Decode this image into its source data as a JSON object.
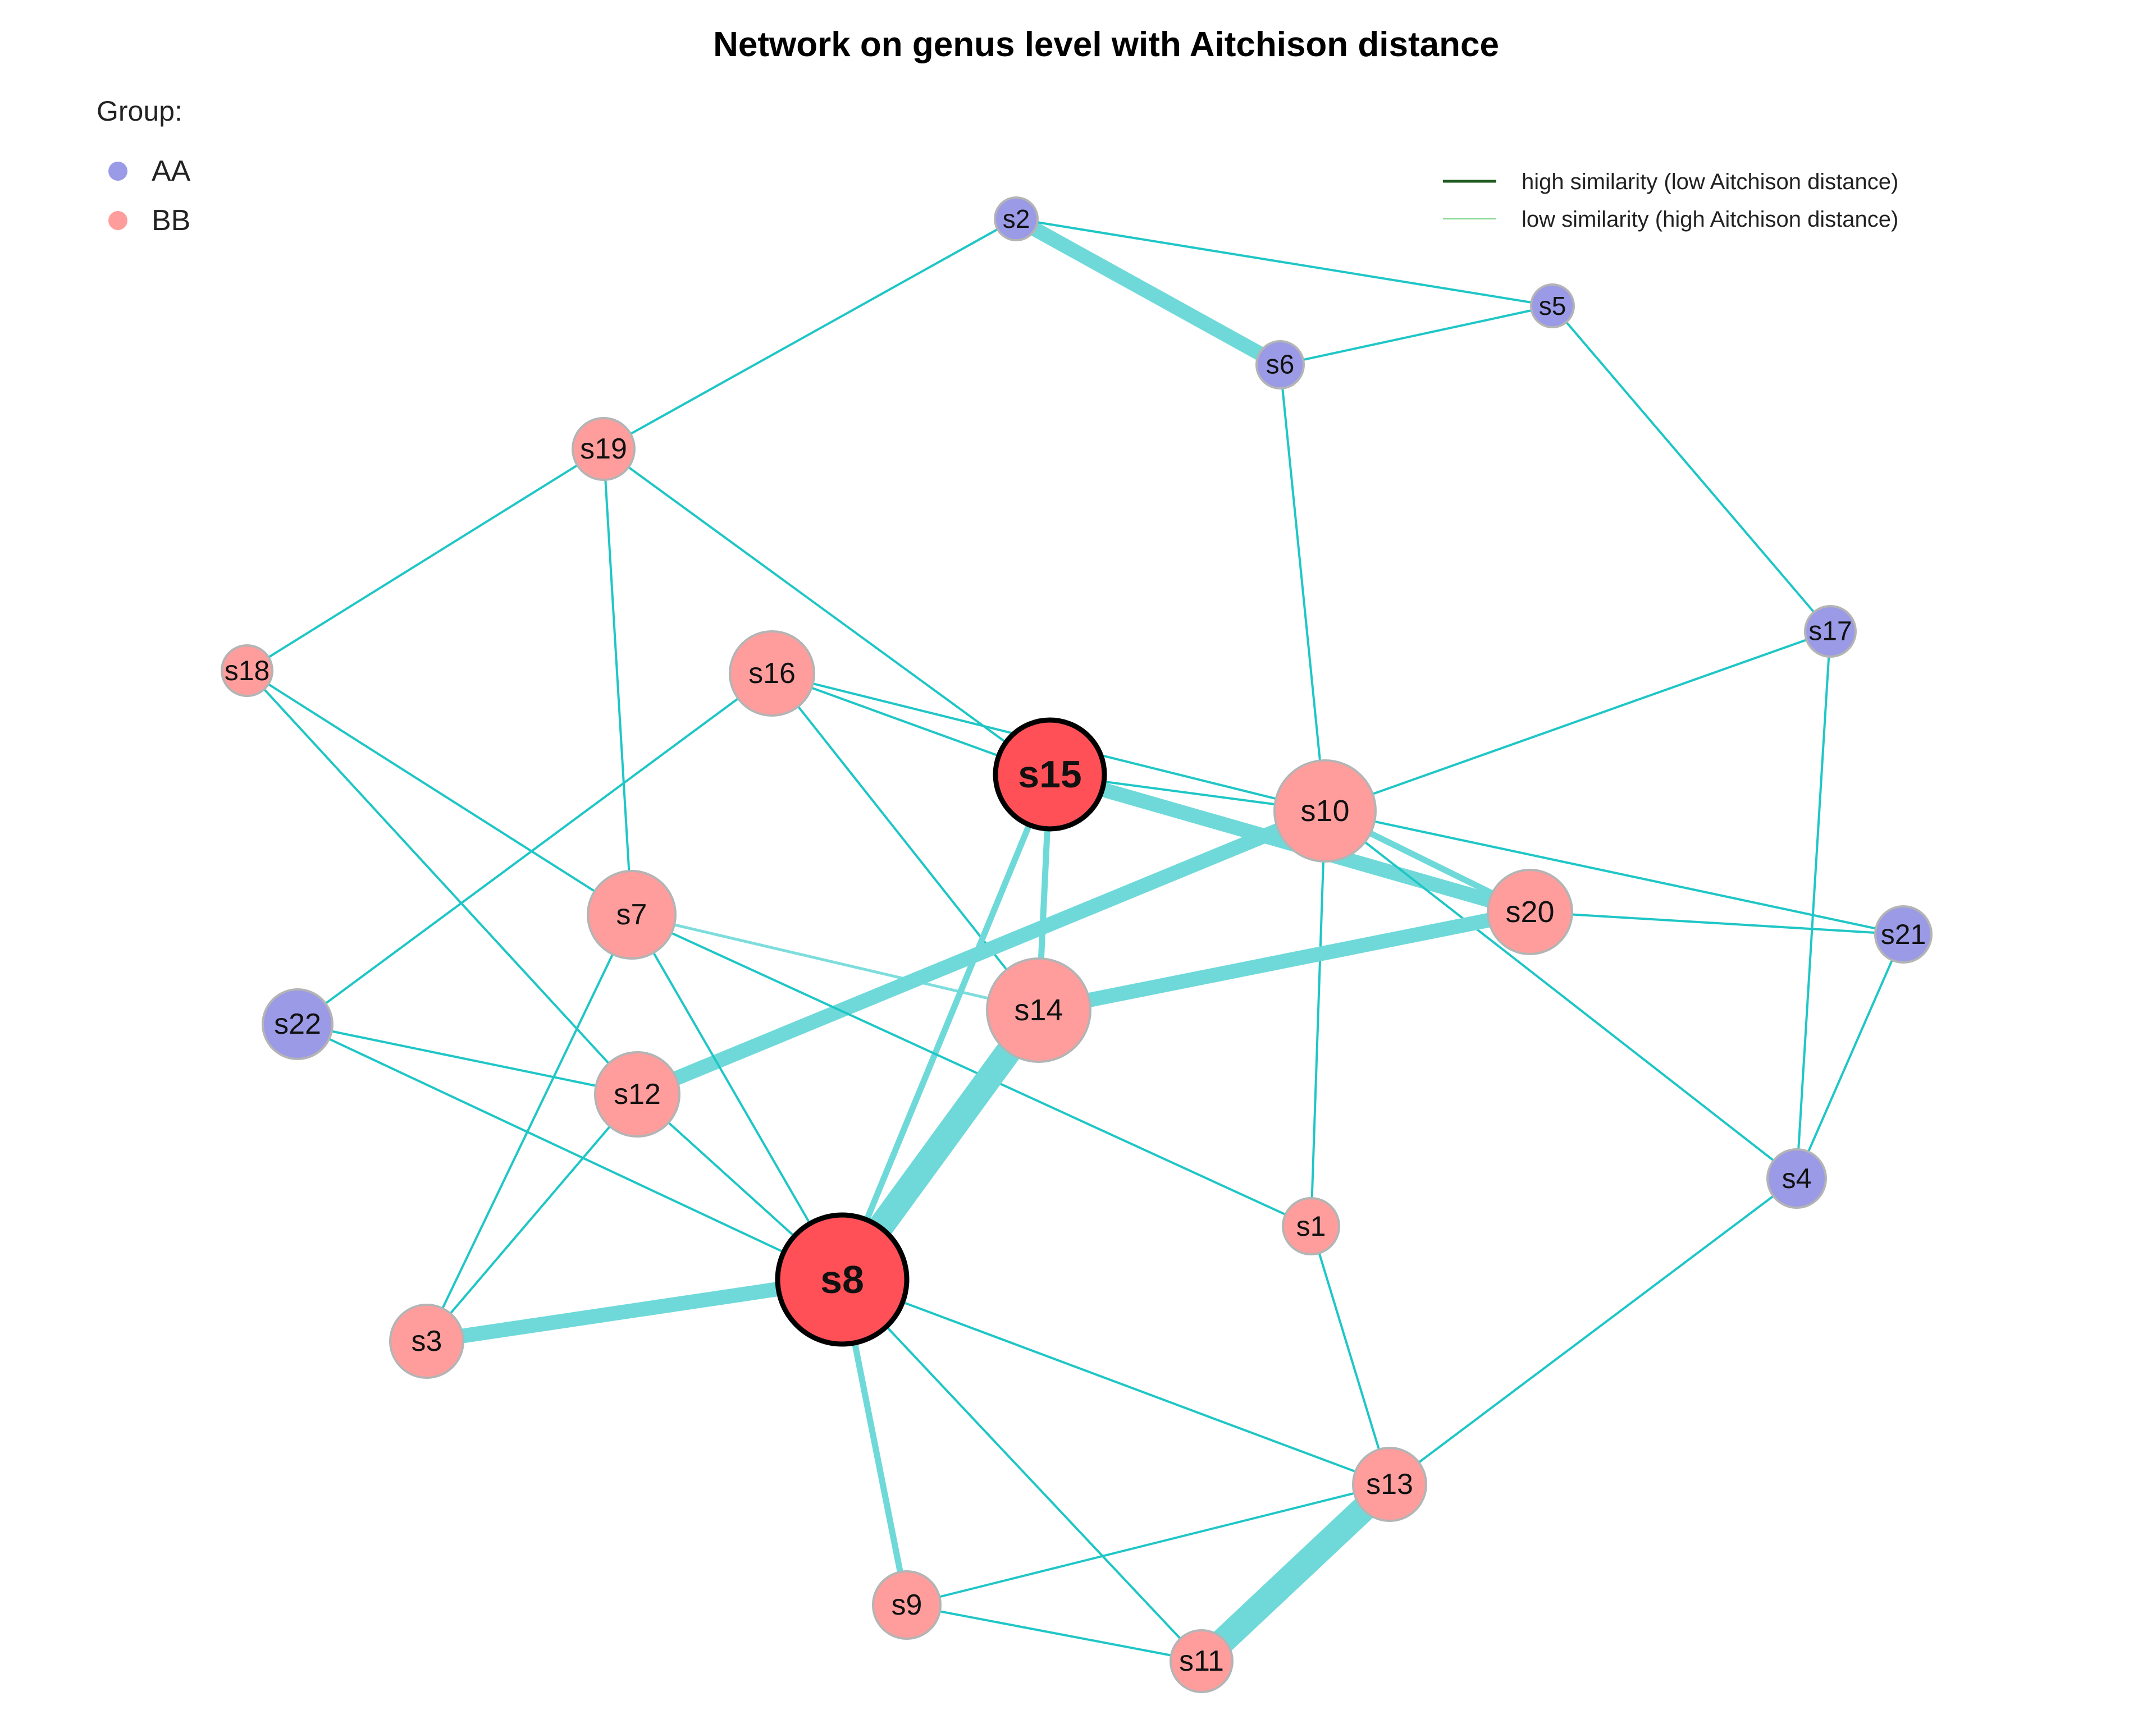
{
  "title": "Network on genus level with Aitchison distance",
  "legend_group": {
    "heading": "Group:",
    "items": [
      {
        "label": "AA",
        "color": "#9a9ae6"
      },
      {
        "label": "BB",
        "color": "#ff9d9d"
      }
    ]
  },
  "legend_edges": {
    "high_label": "high similarity (low Aitchison distance)",
    "low_label": "low similarity (high Aitchison distance)",
    "high_color": "#1f5a1f",
    "low_color": "#7fd58a"
  },
  "colors": {
    "edge": "#1fc6c6",
    "edge_thick": "#6fd9d9",
    "node_AA": "#9a9ae6",
    "node_BB": "#ff9d9d",
    "node_hub": "#ff5057",
    "node_border": "#b4b4b4",
    "hub_border": "#000000"
  },
  "nodes": [
    {
      "id": "s1",
      "label": "s1",
      "group": "BB",
      "hub": false
    },
    {
      "id": "s2",
      "label": "s2",
      "group": "AA",
      "hub": false
    },
    {
      "id": "s3",
      "label": "s3",
      "group": "BB",
      "hub": false
    },
    {
      "id": "s4",
      "label": "s4",
      "group": "AA",
      "hub": false
    },
    {
      "id": "s5",
      "label": "s5",
      "group": "AA",
      "hub": false
    },
    {
      "id": "s6",
      "label": "s6",
      "group": "AA",
      "hub": false
    },
    {
      "id": "s7",
      "label": "s7",
      "group": "BB",
      "hub": false
    },
    {
      "id": "s8",
      "label": "s8",
      "group": "BB",
      "hub": true
    },
    {
      "id": "s9",
      "label": "s9",
      "group": "BB",
      "hub": false
    },
    {
      "id": "s10",
      "label": "s10",
      "group": "BB",
      "hub": false
    },
    {
      "id": "s11",
      "label": "s11",
      "group": "BB",
      "hub": false
    },
    {
      "id": "s12",
      "label": "s12",
      "group": "BB",
      "hub": false
    },
    {
      "id": "s13",
      "label": "s13",
      "group": "BB",
      "hub": false
    },
    {
      "id": "s14",
      "label": "s14",
      "group": "BB",
      "hub": false
    },
    {
      "id": "s15",
      "label": "s15",
      "group": "BB",
      "hub": true
    },
    {
      "id": "s16",
      "label": "s16",
      "group": "BB",
      "hub": false
    },
    {
      "id": "s17",
      "label": "s17",
      "group": "AA",
      "hub": false
    },
    {
      "id": "s18",
      "label": "s18",
      "group": "BB",
      "hub": false
    },
    {
      "id": "s19",
      "label": "s19",
      "group": "BB",
      "hub": false
    },
    {
      "id": "s20",
      "label": "s20",
      "group": "BB",
      "hub": false
    },
    {
      "id": "s21",
      "label": "s21",
      "group": "AA",
      "hub": false
    },
    {
      "id": "s22",
      "label": "s22",
      "group": "AA",
      "hub": false
    }
  ],
  "edges": [
    {
      "source": "s2",
      "target": "s6",
      "strength": "strong"
    },
    {
      "source": "s2",
      "target": "s5",
      "strength": "weak"
    },
    {
      "source": "s2",
      "target": "s19",
      "strength": "weak"
    },
    {
      "source": "s5",
      "target": "s6",
      "strength": "weak"
    },
    {
      "source": "s5",
      "target": "s17",
      "strength": "weak"
    },
    {
      "source": "s6",
      "target": "s10",
      "strength": "weak"
    },
    {
      "source": "s19",
      "target": "s18",
      "strength": "weak"
    },
    {
      "source": "s19",
      "target": "s7",
      "strength": "weak"
    },
    {
      "source": "s19",
      "target": "s15",
      "strength": "weak"
    },
    {
      "source": "s18",
      "target": "s7",
      "strength": "weak"
    },
    {
      "source": "s18",
      "target": "s12",
      "strength": "weak"
    },
    {
      "source": "s16",
      "target": "s15",
      "strength": "weak"
    },
    {
      "source": "s16",
      "target": "s10",
      "strength": "weak"
    },
    {
      "source": "s16",
      "target": "s14",
      "strength": "weak"
    },
    {
      "source": "s16",
      "target": "s22",
      "strength": "weak"
    },
    {
      "source": "s17",
      "target": "s10",
      "strength": "weak"
    },
    {
      "source": "s17",
      "target": "s4",
      "strength": "weak"
    },
    {
      "source": "s15",
      "target": "s10",
      "strength": "weak"
    },
    {
      "source": "s15",
      "target": "s20",
      "strength": "strong"
    },
    {
      "source": "s15",
      "target": "s14",
      "strength": "medium"
    },
    {
      "source": "s15",
      "target": "s8",
      "strength": "medium"
    },
    {
      "source": "s10",
      "target": "s20",
      "strength": "medium"
    },
    {
      "source": "s10",
      "target": "s21",
      "strength": "weak"
    },
    {
      "source": "s10",
      "target": "s12",
      "strength": "strong"
    },
    {
      "source": "s10",
      "target": "s1",
      "strength": "weak"
    },
    {
      "source": "s10",
      "target": "s4",
      "strength": "weak"
    },
    {
      "source": "s20",
      "target": "s21",
      "strength": "weak"
    },
    {
      "source": "s20",
      "target": "s14",
      "strength": "strong"
    },
    {
      "source": "s21",
      "target": "s4",
      "strength": "weak"
    },
    {
      "source": "s7",
      "target": "s14",
      "strength": "light"
    },
    {
      "source": "s7",
      "target": "s1",
      "strength": "weak"
    },
    {
      "source": "s7",
      "target": "s3",
      "strength": "weak"
    },
    {
      "source": "s7",
      "target": "s8",
      "strength": "weak"
    },
    {
      "source": "s14",
      "target": "s8",
      "strength": "very_strong"
    },
    {
      "source": "s22",
      "target": "s12",
      "strength": "weak"
    },
    {
      "source": "s22",
      "target": "s8",
      "strength": "weak"
    },
    {
      "source": "s12",
      "target": "s8",
      "strength": "weak"
    },
    {
      "source": "s12",
      "target": "s3",
      "strength": "weak"
    },
    {
      "source": "s8",
      "target": "s3",
      "strength": "strong"
    },
    {
      "source": "s8",
      "target": "s9",
      "strength": "medium"
    },
    {
      "source": "s8",
      "target": "s11",
      "strength": "weak"
    },
    {
      "source": "s8",
      "target": "s13",
      "strength": "weak"
    },
    {
      "source": "s1",
      "target": "s13",
      "strength": "weak"
    },
    {
      "source": "s4",
      "target": "s13",
      "strength": "weak"
    },
    {
      "source": "s13",
      "target": "s9",
      "strength": "weak"
    },
    {
      "source": "s13",
      "target": "s11",
      "strength": "very_strong"
    },
    {
      "source": "s9",
      "target": "s11",
      "strength": "weak"
    }
  ]
}
